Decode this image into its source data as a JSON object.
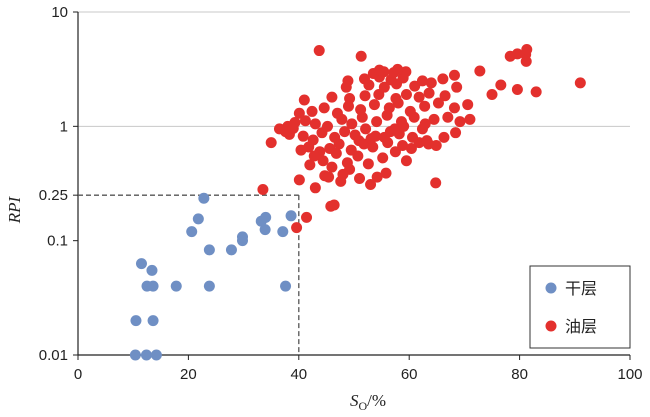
{
  "chart_data": {
    "type": "scatter",
    "xlabel": {
      "main": "S",
      "sub": "O",
      "unit": "/%"
    },
    "ylabel": "RPI",
    "xlim": [
      0,
      100
    ],
    "ylim": [
      0.01,
      10
    ],
    "yscale": "log",
    "xticks": [
      "0",
      "20",
      "40",
      "60",
      "80",
      "100"
    ],
    "yticks": [
      {
        "value": 0.01,
        "label": "0.01"
      },
      {
        "value": 0.1,
        "label": "0.1"
      },
      {
        "value": 0.25,
        "label": "0.25"
      },
      {
        "value": 1,
        "label": "1"
      },
      {
        "value": 10,
        "label": "10"
      }
    ],
    "gridlines_y": [
      1,
      10
    ],
    "cutoff": {
      "x": 40,
      "y": 0.25
    },
    "legend_position": "bottom-right",
    "series": [
      {
        "name": "干层",
        "color": "#6f8fc4",
        "points": [
          [
            10.4,
            0.01
          ],
          [
            12.4,
            0.01
          ],
          [
            14.2,
            0.01
          ],
          [
            10.5,
            0.02
          ],
          [
            13.6,
            0.02
          ],
          [
            12.5,
            0.04
          ],
          [
            13.6,
            0.04
          ],
          [
            17.8,
            0.04
          ],
          [
            23.8,
            0.04
          ],
          [
            37.6,
            0.04
          ],
          [
            11.5,
            0.063
          ],
          [
            13.4,
            0.055
          ],
          [
            23.8,
            0.083
          ],
          [
            27.8,
            0.083
          ],
          [
            29.8,
            0.1
          ],
          [
            29.8,
            0.108
          ],
          [
            20.6,
            0.12
          ],
          [
            33.9,
            0.125
          ],
          [
            37.1,
            0.12
          ],
          [
            21.8,
            0.155
          ],
          [
            33.2,
            0.148
          ],
          [
            34.0,
            0.16
          ],
          [
            38.6,
            0.165
          ],
          [
            22.8,
            0.235
          ]
        ]
      },
      {
        "name": "油层",
        "color": "#e3302d",
        "points": [
          [
            39.6,
            0.13
          ],
          [
            41.4,
            0.16
          ],
          [
            45.8,
            0.2
          ],
          [
            46.4,
            0.205
          ],
          [
            33.5,
            0.28
          ],
          [
            40.1,
            0.34
          ],
          [
            43.0,
            0.29
          ],
          [
            44.7,
            0.37
          ],
          [
            47.6,
            0.33
          ],
          [
            49.2,
            0.42
          ],
          [
            51.0,
            0.35
          ],
          [
            53.0,
            0.31
          ],
          [
            54.2,
            0.36
          ],
          [
            55.8,
            0.39
          ],
          [
            64.8,
            0.32
          ],
          [
            42.0,
            0.46
          ],
          [
            44.4,
            0.5
          ],
          [
            46.0,
            0.44
          ],
          [
            48.8,
            0.48
          ],
          [
            50.7,
            0.55
          ],
          [
            52.6,
            0.47
          ],
          [
            55.2,
            0.53
          ],
          [
            57.5,
            0.6
          ],
          [
            59.5,
            0.5
          ],
          [
            40.4,
            0.62
          ],
          [
            41.8,
            0.66
          ],
          [
            43.8,
            0.6
          ],
          [
            45.6,
            0.64
          ],
          [
            47.3,
            0.7
          ],
          [
            49.5,
            0.62
          ],
          [
            51.8,
            0.7
          ],
          [
            53.4,
            0.66
          ],
          [
            56.1,
            0.72
          ],
          [
            58.8,
            0.68
          ],
          [
            60.4,
            0.64
          ],
          [
            61.8,
            0.72
          ],
          [
            63.5,
            0.7
          ],
          [
            64.9,
            0.68
          ],
          [
            35.0,
            0.72
          ],
          [
            38.3,
            0.85
          ],
          [
            40.8,
            0.82
          ],
          [
            42.6,
            0.76
          ],
          [
            44.2,
            0.88
          ],
          [
            46.5,
            0.8
          ],
          [
            48.3,
            0.9
          ],
          [
            50.2,
            0.84
          ],
          [
            52.1,
            0.95
          ],
          [
            53.9,
            0.82
          ],
          [
            56.6,
            0.9
          ],
          [
            58.2,
            0.86
          ],
          [
            60.6,
            0.8
          ],
          [
            62.4,
            0.95
          ],
          [
            66.3,
            0.8
          ],
          [
            68.4,
            0.88
          ],
          [
            38.0,
            1.0
          ],
          [
            39.3,
            1.08
          ],
          [
            41.2,
            1.12
          ],
          [
            43.0,
            1.05
          ],
          [
            45.2,
            1.0
          ],
          [
            47.8,
            1.15
          ],
          [
            49.6,
            1.05
          ],
          [
            51.5,
            1.2
          ],
          [
            54.1,
            1.1
          ],
          [
            56.0,
            1.25
          ],
          [
            58.6,
            1.1
          ],
          [
            60.9,
            1.2
          ],
          [
            62.9,
            1.05
          ],
          [
            64.5,
            1.15
          ],
          [
            67.0,
            1.2
          ],
          [
            69.2,
            1.1
          ],
          [
            71.0,
            1.15
          ],
          [
            40.1,
            1.3
          ],
          [
            42.4,
            1.35
          ],
          [
            44.6,
            1.45
          ],
          [
            47.0,
            1.3
          ],
          [
            49.0,
            1.5
          ],
          [
            51.2,
            1.4
          ],
          [
            53.7,
            1.55
          ],
          [
            56.4,
            1.45
          ],
          [
            58.0,
            1.6
          ],
          [
            60.2,
            1.35
          ],
          [
            62.8,
            1.5
          ],
          [
            65.3,
            1.6
          ],
          [
            68.2,
            1.45
          ],
          [
            70.6,
            1.55
          ],
          [
            41.0,
            1.7
          ],
          [
            46.0,
            1.8
          ],
          [
            49.2,
            1.75
          ],
          [
            52.0,
            1.85
          ],
          [
            54.5,
            1.9
          ],
          [
            57.6,
            1.75
          ],
          [
            59.5,
            1.9
          ],
          [
            61.8,
            1.8
          ],
          [
            63.6,
            1.95
          ],
          [
            66.5,
            1.85
          ],
          [
            75.0,
            1.9
          ],
          [
            79.6,
            2.1
          ],
          [
            83.0,
            2.0
          ],
          [
            48.6,
            2.2
          ],
          [
            52.7,
            2.3
          ],
          [
            55.5,
            2.2
          ],
          [
            57.7,
            2.35
          ],
          [
            61.0,
            2.25
          ],
          [
            64.0,
            2.4
          ],
          [
            68.6,
            2.2
          ],
          [
            76.6,
            2.3
          ],
          [
            91.0,
            2.4
          ],
          [
            51.9,
            2.6
          ],
          [
            54.6,
            2.7
          ],
          [
            56.7,
            2.55
          ],
          [
            58.9,
            2.65
          ],
          [
            62.4,
            2.5
          ],
          [
            66.1,
            2.6
          ],
          [
            53.5,
            2.9
          ],
          [
            55.4,
            3.0
          ],
          [
            57.2,
            2.95
          ],
          [
            59.4,
            3.0
          ],
          [
            72.8,
            3.05
          ],
          [
            68.2,
            2.8
          ],
          [
            57.9,
            3.15
          ],
          [
            54.6,
            3.1
          ],
          [
            51.3,
            4.1
          ],
          [
            78.3,
            4.1
          ],
          [
            79.6,
            4.3
          ],
          [
            81.1,
            4.25
          ],
          [
            81.2,
            3.7
          ],
          [
            81.3,
            4.7
          ],
          [
            43.7,
            4.6
          ],
          [
            48.9,
            2.5
          ],
          [
            36.5,
            0.95
          ],
          [
            37.6,
            0.9
          ],
          [
            39.0,
            0.96
          ],
          [
            42.8,
            0.55
          ],
          [
            46.8,
            0.58
          ],
          [
            50.9,
            0.75
          ],
          [
            53.1,
            0.78
          ],
          [
            55.5,
            0.8
          ],
          [
            57.4,
            0.95
          ],
          [
            59.0,
            1.0
          ],
          [
            63.2,
            0.75
          ],
          [
            45.4,
            0.36
          ],
          [
            48.0,
            0.38
          ]
        ]
      }
    ]
  }
}
